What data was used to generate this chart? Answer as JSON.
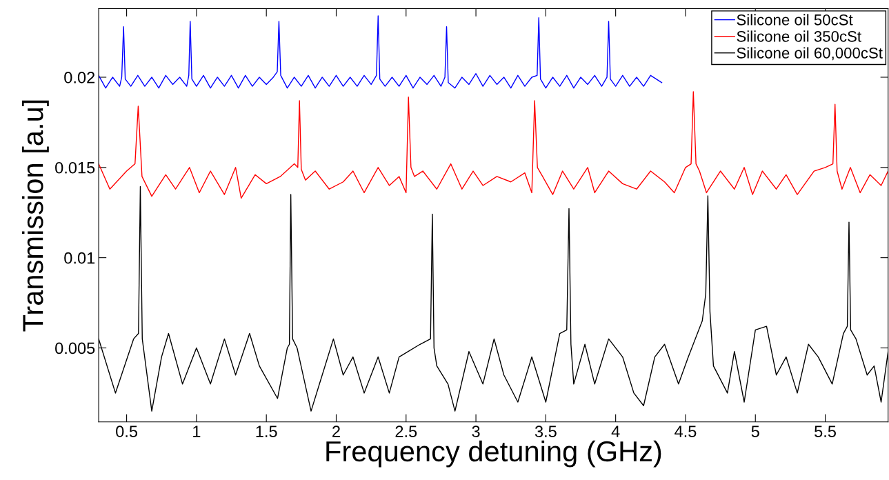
{
  "chart_data": {
    "type": "line",
    "xlabel": "Frequency detuning (GHz)",
    "ylabel": "Transmission [a.u]",
    "xlim": [
      0.3,
      5.95
    ],
    "ylim": [
      0.0009,
      0.0238
    ],
    "xticks": [
      0.5,
      1,
      1.5,
      2,
      2.5,
      3,
      3.5,
      4,
      4.5,
      5,
      5.5
    ],
    "yticks": [
      0.005,
      0.01,
      0.015,
      0.02
    ],
    "grid": false,
    "legend": "top right",
    "marker": "none",
    "line_style": "solid",
    "series": [
      {
        "name": "Silicone oil 50cSt",
        "color": "#0000ff",
        "x": [
          0.3,
          0.35,
          0.4,
          0.45,
          0.465,
          0.478,
          0.49,
          0.53,
          0.58,
          0.63,
          0.68,
          0.73,
          0.78,
          0.83,
          0.88,
          0.93,
          0.945,
          0.955,
          0.967,
          1.0,
          1.05,
          1.1,
          1.15,
          1.2,
          1.25,
          1.3,
          1.35,
          1.4,
          1.45,
          1.5,
          1.55,
          1.578,
          1.59,
          1.603,
          1.65,
          1.7,
          1.75,
          1.8,
          1.85,
          1.9,
          1.95,
          2.0,
          2.05,
          2.1,
          2.15,
          2.2,
          2.25,
          2.288,
          2.3,
          2.312,
          2.35,
          2.4,
          2.45,
          2.5,
          2.55,
          2.6,
          2.65,
          2.7,
          2.75,
          2.778,
          2.79,
          2.802,
          2.85,
          2.9,
          2.95,
          3.0,
          3.05,
          3.1,
          3.15,
          3.2,
          3.25,
          3.3,
          3.35,
          3.4,
          3.438,
          3.45,
          3.462,
          3.5,
          3.55,
          3.6,
          3.65,
          3.7,
          3.75,
          3.8,
          3.85,
          3.9,
          3.938,
          3.95,
          3.962,
          4.0,
          4.05,
          4.1,
          4.15,
          4.2,
          4.25,
          4.33
        ],
        "values": [
          0.0201,
          0.0194,
          0.02,
          0.0195,
          0.02,
          0.0228,
          0.0199,
          0.0195,
          0.0201,
          0.0195,
          0.02,
          0.0194,
          0.0201,
          0.0196,
          0.02,
          0.0195,
          0.0201,
          0.0231,
          0.0199,
          0.0195,
          0.0201,
          0.0194,
          0.02,
          0.0195,
          0.0201,
          0.0194,
          0.0201,
          0.0195,
          0.02,
          0.0196,
          0.02,
          0.0203,
          0.0231,
          0.0201,
          0.0194,
          0.02,
          0.0195,
          0.0201,
          0.0194,
          0.02,
          0.0195,
          0.0201,
          0.0195,
          0.02,
          0.0195,
          0.0201,
          0.0196,
          0.0201,
          0.0234,
          0.0199,
          0.0195,
          0.02,
          0.0195,
          0.0201,
          0.0194,
          0.02,
          0.0196,
          0.0201,
          0.0195,
          0.02,
          0.0228,
          0.0197,
          0.0194,
          0.02,
          0.0196,
          0.0202,
          0.0195,
          0.0201,
          0.0196,
          0.02,
          0.0194,
          0.0201,
          0.0195,
          0.02,
          0.0201,
          0.0233,
          0.0199,
          0.0194,
          0.02,
          0.0195,
          0.0201,
          0.0194,
          0.02,
          0.0196,
          0.0201,
          0.0195,
          0.02,
          0.0231,
          0.0199,
          0.0195,
          0.0201,
          0.0195,
          0.02,
          0.0195,
          0.0201,
          0.0197
        ]
      },
      {
        "name": "Silicone oil 350cSt",
        "color": "#ff0000",
        "x": [
          0.3,
          0.38,
          0.5,
          0.56,
          0.583,
          0.61,
          0.68,
          0.78,
          0.85,
          0.95,
          1.02,
          1.1,
          1.2,
          1.28,
          1.32,
          1.42,
          1.5,
          1.6,
          1.7,
          1.725,
          1.737,
          1.75,
          1.78,
          1.85,
          1.95,
          2.05,
          2.12,
          2.2,
          2.3,
          2.38,
          2.45,
          2.5,
          2.517,
          2.535,
          2.56,
          2.62,
          2.72,
          2.82,
          2.9,
          2.98,
          3.05,
          3.15,
          3.25,
          3.35,
          3.4,
          3.42,
          3.44,
          3.47,
          3.55,
          3.62,
          3.7,
          3.8,
          3.85,
          3.95,
          4.05,
          4.15,
          4.25,
          4.35,
          4.42,
          4.5,
          4.54,
          4.556,
          4.575,
          4.6,
          4.65,
          4.75,
          4.85,
          4.92,
          4.98,
          5.05,
          5.15,
          5.22,
          5.3,
          5.42,
          5.5,
          5.555,
          5.57,
          5.585,
          5.62,
          5.68,
          5.75,
          5.82,
          5.9,
          5.95
        ],
        "values": [
          0.0152,
          0.0138,
          0.0148,
          0.0152,
          0.0184,
          0.0145,
          0.0134,
          0.0146,
          0.0138,
          0.015,
          0.0136,
          0.0148,
          0.0135,
          0.015,
          0.0133,
          0.0146,
          0.0141,
          0.0145,
          0.0152,
          0.015,
          0.0187,
          0.0149,
          0.0143,
          0.0148,
          0.0138,
          0.0142,
          0.0148,
          0.0136,
          0.015,
          0.014,
          0.0145,
          0.0136,
          0.0189,
          0.015,
          0.0145,
          0.0148,
          0.0138,
          0.0152,
          0.0138,
          0.0148,
          0.014,
          0.0145,
          0.0142,
          0.0147,
          0.0136,
          0.0187,
          0.015,
          0.0146,
          0.0135,
          0.0148,
          0.0138,
          0.015,
          0.0136,
          0.0148,
          0.0141,
          0.0138,
          0.0148,
          0.0142,
          0.0136,
          0.015,
          0.0152,
          0.0192,
          0.0152,
          0.0148,
          0.0136,
          0.0148,
          0.0138,
          0.015,
          0.0135,
          0.0148,
          0.0138,
          0.0146,
          0.0135,
          0.0148,
          0.015,
          0.0152,
          0.0185,
          0.0148,
          0.0138,
          0.015,
          0.0136,
          0.0146,
          0.014,
          0.0148
        ]
      },
      {
        "name": "Silicone oil 60,000cSt",
        "color": "#000000",
        "x": [
          0.3,
          0.42,
          0.55,
          0.585,
          0.598,
          0.612,
          0.68,
          0.75,
          0.8,
          0.9,
          1.0,
          1.1,
          1.2,
          1.28,
          1.38,
          1.45,
          1.58,
          1.65,
          1.665,
          1.675,
          1.688,
          1.72,
          1.82,
          1.88,
          1.98,
          2.05,
          2.12,
          2.2,
          2.3,
          2.38,
          2.45,
          2.6,
          2.675,
          2.688,
          2.7,
          2.72,
          2.8,
          2.85,
          2.95,
          3.05,
          3.13,
          3.2,
          3.3,
          3.4,
          3.5,
          3.6,
          3.65,
          3.666,
          3.68,
          3.7,
          3.78,
          3.85,
          3.95,
          4.05,
          4.13,
          4.2,
          4.28,
          4.35,
          4.45,
          4.52,
          4.62,
          4.645,
          4.66,
          4.675,
          4.7,
          4.8,
          4.85,
          4.92,
          5.0,
          5.08,
          5.15,
          5.22,
          5.3,
          5.38,
          5.45,
          5.55,
          5.63,
          5.658,
          5.67,
          5.682,
          5.72,
          5.8,
          5.85,
          5.9,
          5.95
        ],
        "values": [
          0.0055,
          0.0025,
          0.0055,
          0.0058,
          0.01394,
          0.0055,
          0.0015,
          0.0045,
          0.0058,
          0.003,
          0.005,
          0.003,
          0.0055,
          0.0035,
          0.0058,
          0.004,
          0.0022,
          0.005,
          0.0052,
          0.0135,
          0.0055,
          0.005,
          0.0015,
          0.003,
          0.0055,
          0.0035,
          0.0045,
          0.0025,
          0.0045,
          0.0025,
          0.0045,
          0.0052,
          0.0055,
          0.01242,
          0.005,
          0.004,
          0.003,
          0.0015,
          0.0048,
          0.003,
          0.0055,
          0.0035,
          0.002,
          0.0045,
          0.002,
          0.0058,
          0.006,
          0.01272,
          0.0052,
          0.003,
          0.0052,
          0.003,
          0.0055,
          0.0045,
          0.0025,
          0.0018,
          0.0045,
          0.0052,
          0.003,
          0.0045,
          0.0065,
          0.008,
          0.01343,
          0.007,
          0.004,
          0.0025,
          0.0048,
          0.002,
          0.006,
          0.0062,
          0.0035,
          0.0045,
          0.0025,
          0.0052,
          0.0045,
          0.003,
          0.0058,
          0.0062,
          0.01197,
          0.006,
          0.0055,
          0.0035,
          0.004,
          0.002,
          0.0048
        ]
      }
    ]
  }
}
